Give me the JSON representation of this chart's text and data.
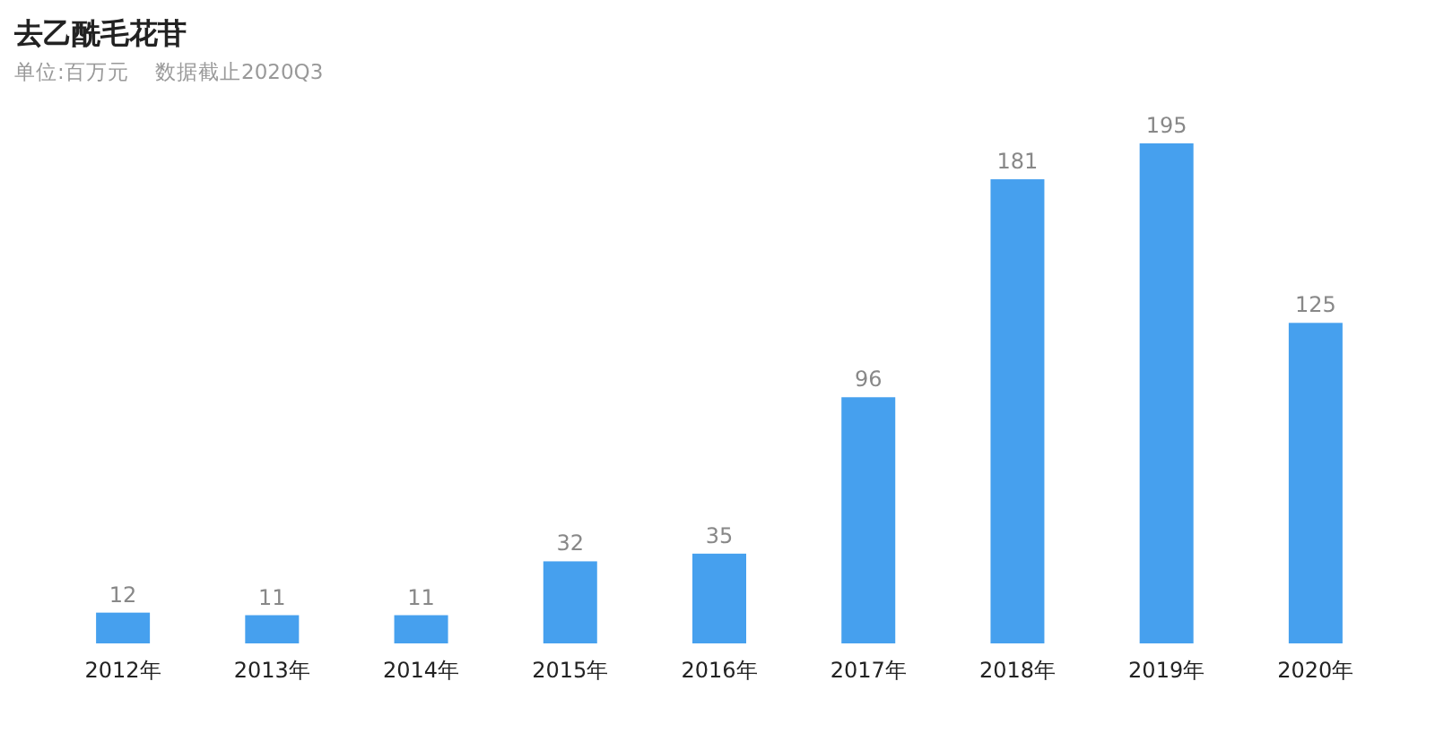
{
  "chart_data": {
    "type": "bar",
    "title": "去乙酰毛花苷",
    "subtitle": "单位:百万元    数据截止2020Q3",
    "categories": [
      "2012年",
      "2013年",
      "2014年",
      "2015年",
      "2016年",
      "2017年",
      "2018年",
      "2019年",
      "2020年"
    ],
    "values": [
      12,
      11,
      11,
      32,
      35,
      96,
      181,
      195,
      125
    ],
    "color": "#46a0ee",
    "data_labels": true
  }
}
